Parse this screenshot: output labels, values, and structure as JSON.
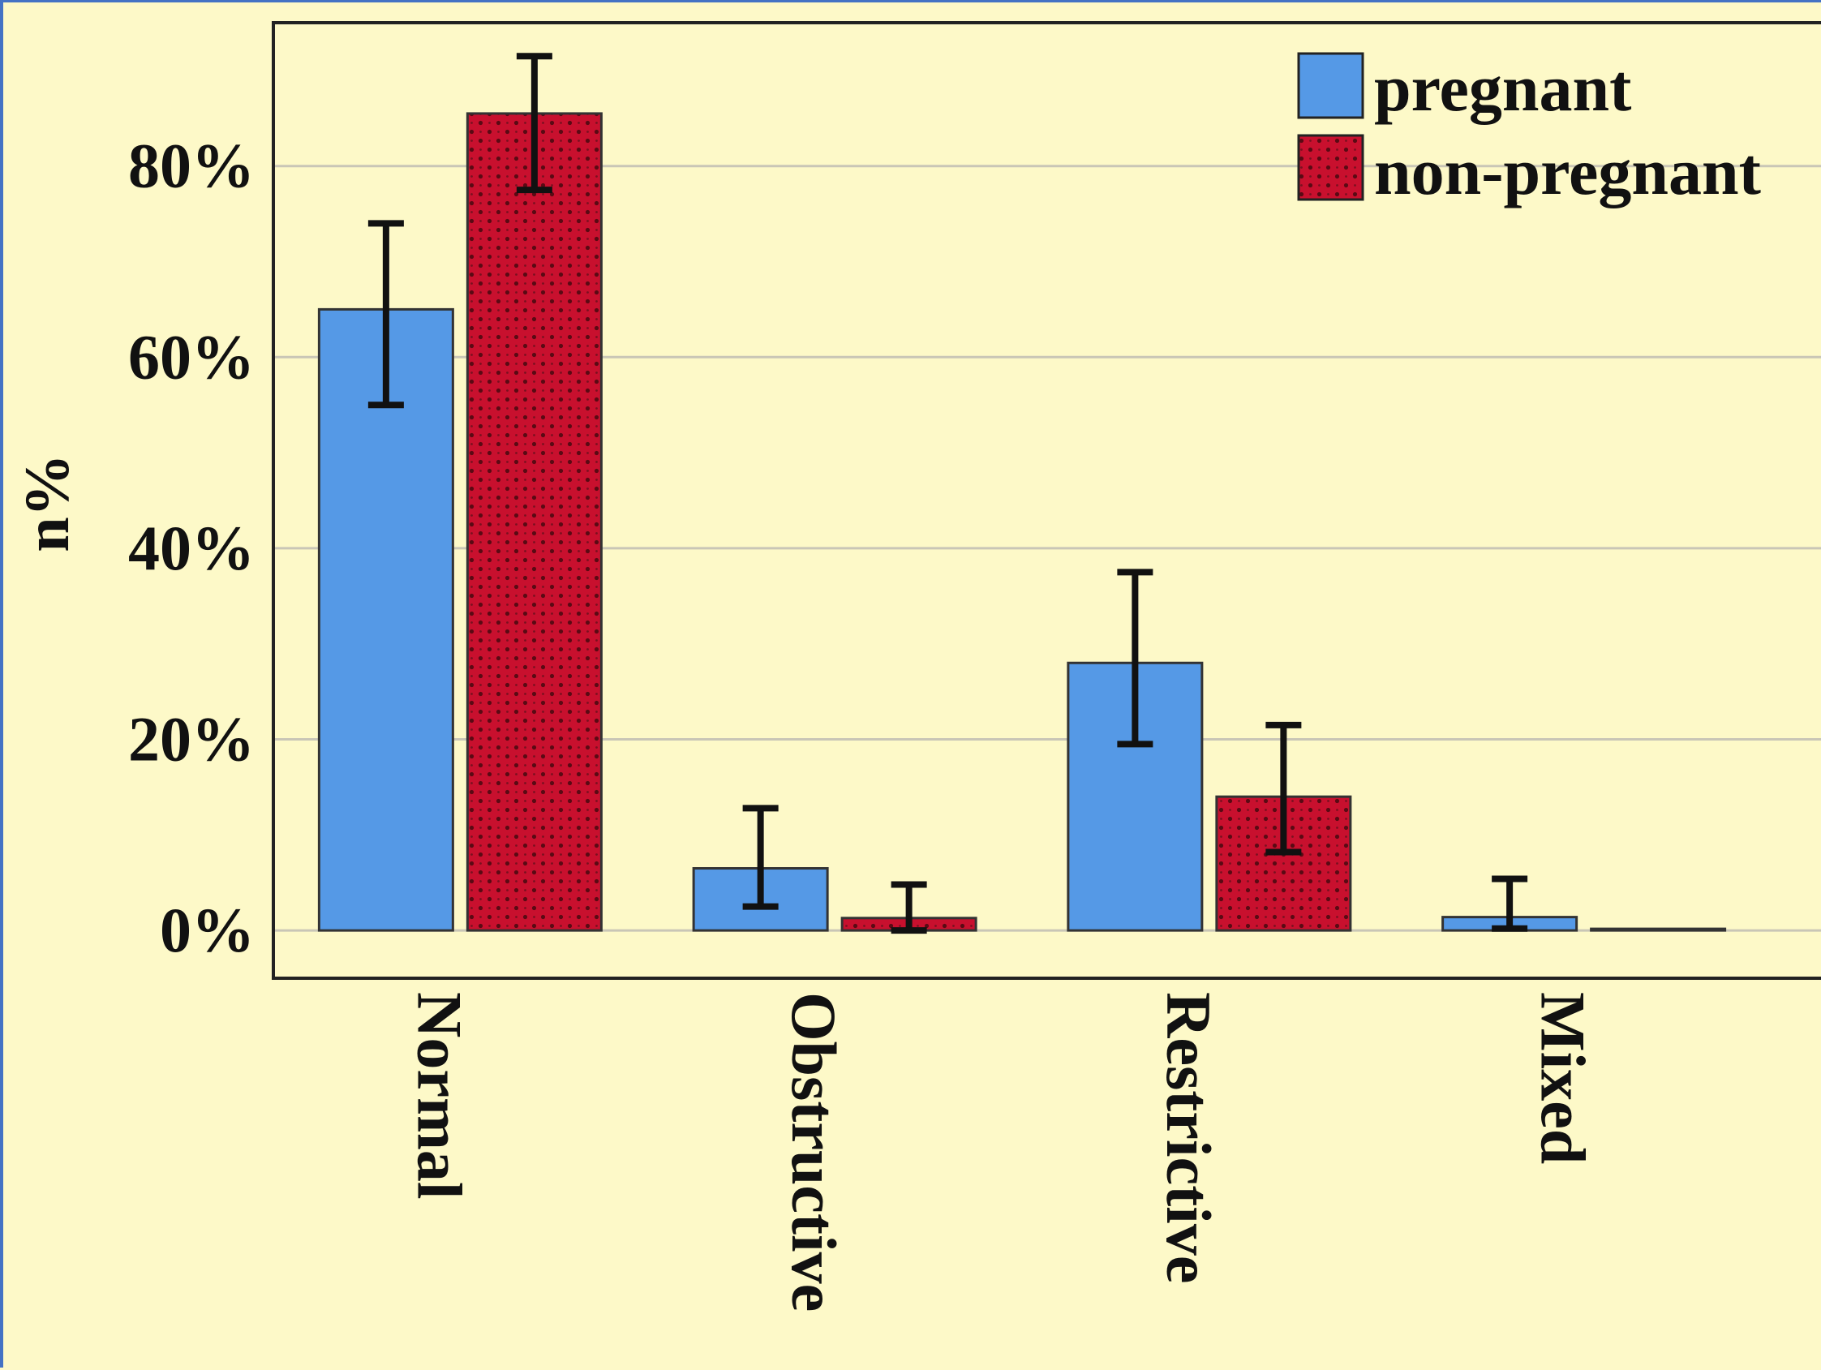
{
  "chart_data": {
    "type": "bar",
    "title": "",
    "xlabel": "",
    "ylabel": "n%",
    "categories": [
      "Normal",
      "Obstructive",
      "Restrictive",
      "Mixed"
    ],
    "series": [
      {
        "name": "pregnant",
        "values": [
          65,
          6.5,
          28,
          1.4
        ],
        "error_low": [
          55,
          2.5,
          19.5,
          0.2
        ],
        "error_high": [
          74,
          12.8,
          37.5,
          5.4
        ],
        "color": "#5599e6",
        "pattern": "solid"
      },
      {
        "name": "non-pregnant",
        "values": [
          85.5,
          1.3,
          14,
          0
        ],
        "error_low": [
          77.5,
          0,
          8.2,
          0
        ],
        "error_high": [
          91.5,
          4.8,
          21.5,
          0
        ],
        "color": "#c8102e",
        "pattern": "dotted"
      }
    ],
    "ylim": [
      -5,
      95
    ],
    "yticks": [
      0,
      20,
      40,
      60,
      80
    ],
    "ytick_labels": [
      "0%",
      "20%",
      "40%",
      "60%",
      "80%"
    ],
    "grid": true,
    "legend_position": "top-right",
    "error_bars": true,
    "background_color": "#fdf9c8",
    "border_color": "#4472c4"
  }
}
